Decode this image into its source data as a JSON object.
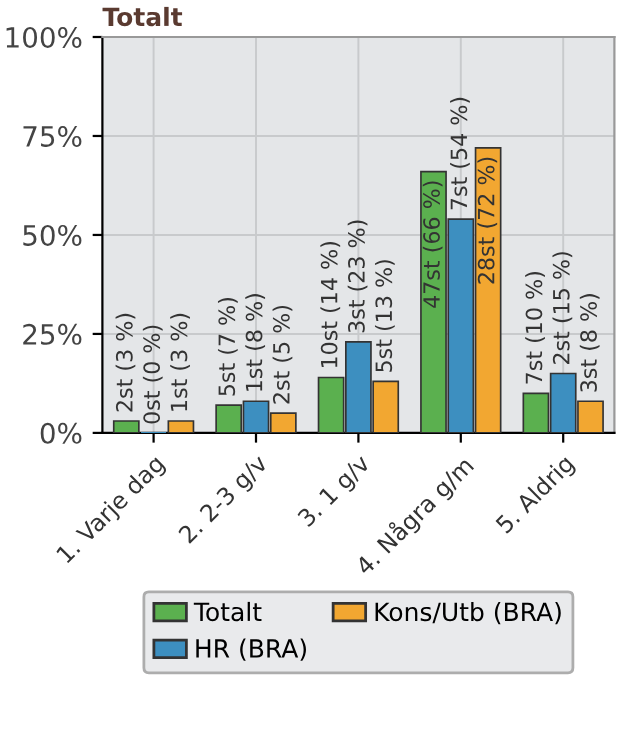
{
  "chart_data": {
    "type": "bar",
    "title": "Totalt",
    "categories": [
      "1. Varje dag",
      "2. 2-3 g/v",
      "3. 1 g/v",
      "4. Några g/m",
      "5. Aldrig"
    ],
    "series": [
      {
        "name": "Totalt",
        "color": "#5bb04f",
        "values": [
          3,
          7,
          14,
          66,
          10
        ],
        "value_labels": [
          "2st (3 %)",
          "5st (7 %)",
          "10st (14 %)",
          "47st (66 %)",
          "7st (10 %)"
        ]
      },
      {
        "name": "HR (BRA)",
        "color": "#3d8fc0",
        "values": [
          0,
          8,
          23,
          54,
          15
        ],
        "value_labels": [
          "0st (0 %)",
          "1st (8 %)",
          "3st (23 %)",
          "7st (54 %)",
          "2st (15 %)"
        ]
      },
      {
        "name": "Kons/Utb (BRA)",
        "color": "#f2a731",
        "values": [
          3,
          5,
          13,
          72,
          8
        ],
        "value_labels": [
          "1st (3 %)",
          "2st (5 %)",
          "5st (13 %)",
          "28st (72 %)",
          "3st (8 %)"
        ]
      }
    ],
    "ylim": [
      0,
      100
    ],
    "yticks": [
      {
        "value": 0,
        "label": "0%"
      },
      {
        "value": 25,
        "label": "25%"
      },
      {
        "value": 50,
        "label": "50%"
      },
      {
        "value": 75,
        "label": "75%"
      },
      {
        "value": 100,
        "label": "100%"
      }
    ],
    "grid": true,
    "legend": "bottom"
  }
}
